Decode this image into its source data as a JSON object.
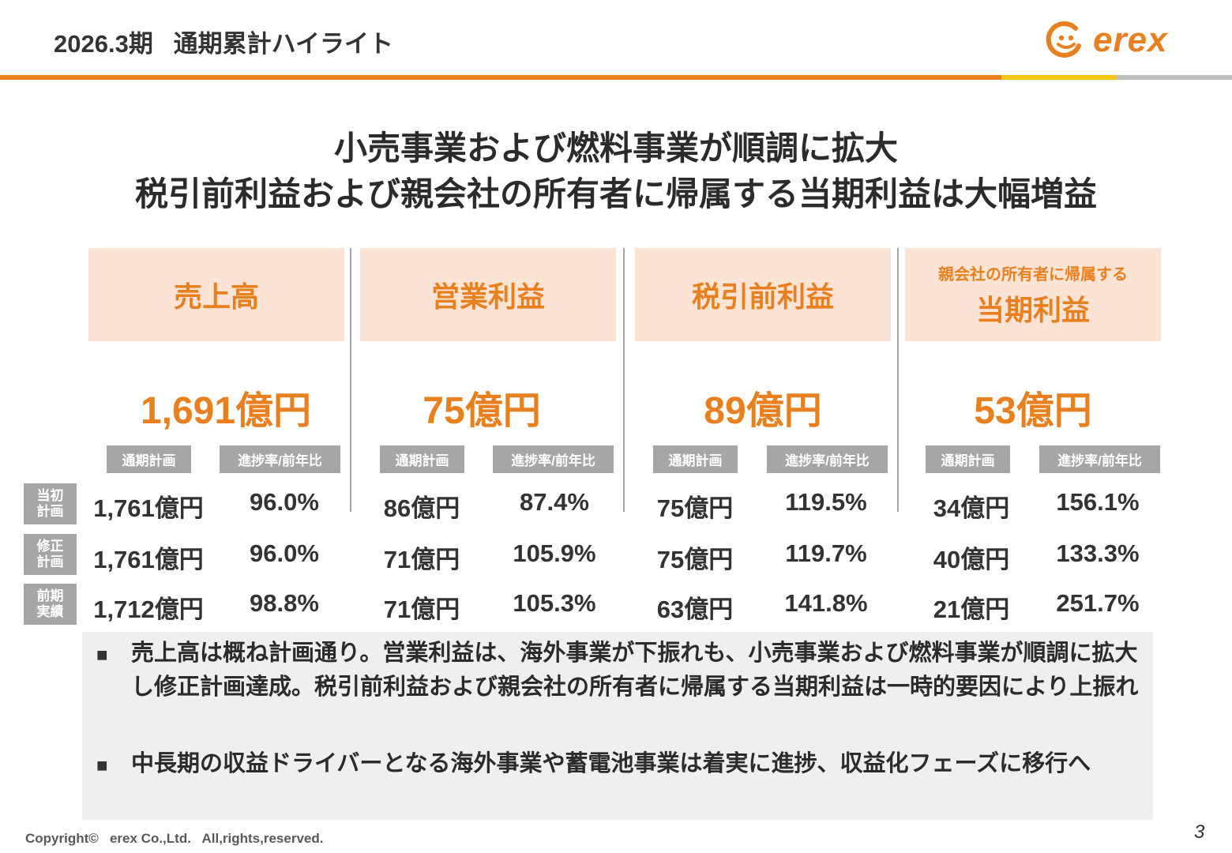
{
  "header": {
    "title": "2026.3期   通期累計ハイライト",
    "logo_text": "erex",
    "accent_colors": [
      "#e9801f",
      "#f5c518",
      "#bfbfbf"
    ]
  },
  "headline": {
    "line1": "小売事業および燃料事業が順調に拡大",
    "line2": "税引前利益および親会社の所有者に帰属する当期利益は大幅増益"
  },
  "metrics": [
    {
      "title_small": "",
      "title": "売上高",
      "result": "1,691億円",
      "col_plan": "通期計画",
      "col_rate": "進捗率/前年比",
      "rows": [
        {
          "plan": "1,761億円",
          "rate": "96.0%"
        },
        {
          "plan": "1,761億円",
          "rate": "96.0%"
        },
        {
          "plan": "1,712億円",
          "rate": "98.8%"
        }
      ]
    },
    {
      "title_small": "",
      "title": "営業利益",
      "result": "75億円",
      "col_plan": "通期計画",
      "col_rate": "進捗率/前年比",
      "rows": [
        {
          "plan": "86億円",
          "rate": "87.4%"
        },
        {
          "plan": "71億円",
          "rate": "105.9%"
        },
        {
          "plan": "71億円",
          "rate": "105.3%"
        }
      ]
    },
    {
      "title_small": "",
      "title": "税引前利益",
      "result": "89億円",
      "col_plan": "通期計画",
      "col_rate": "進捗率/前年比",
      "rows": [
        {
          "plan": "75億円",
          "rate": "119.5%"
        },
        {
          "plan": "75億円",
          "rate": "119.7%"
        },
        {
          "plan": "63億円",
          "rate": "141.8%"
        }
      ]
    },
    {
      "title_small": "親会社の所有者に帰属する",
      "title": "当期利益",
      "result": "53億円",
      "col_plan": "通期計画",
      "col_rate": "進捗率/前年比",
      "rows": [
        {
          "plan": "34億円",
          "rate": "156.1%"
        },
        {
          "plan": "40億円",
          "rate": "133.3%"
        },
        {
          "plan": "21億円",
          "rate": "251.7%"
        }
      ]
    }
  ],
  "row_labels": [
    {
      "line1": "当初",
      "line2": "計画"
    },
    {
      "line1": "修正",
      "line2": "計画"
    },
    {
      "line1": "前期",
      "line2": "実績"
    }
  ],
  "notes": {
    "bullet_icon": "square-bullet",
    "items": [
      "売上高は概ね計画通り。営業利益は、海外事業が下振れも、小売事業および燃料事業が順調に拡大し修正計画達成。税引前利益および親会社の所有者に帰属する当期利益は一時的要因により上振れ",
      "中長期の収益ドライバーとなる海外事業や蓄電池事業は着実に進捗、収益化フェーズに移行へ"
    ]
  },
  "footer": {
    "copyright": "Copyright©   erex Co.,Ltd.   All,rights,reserved.",
    "page": "3"
  }
}
